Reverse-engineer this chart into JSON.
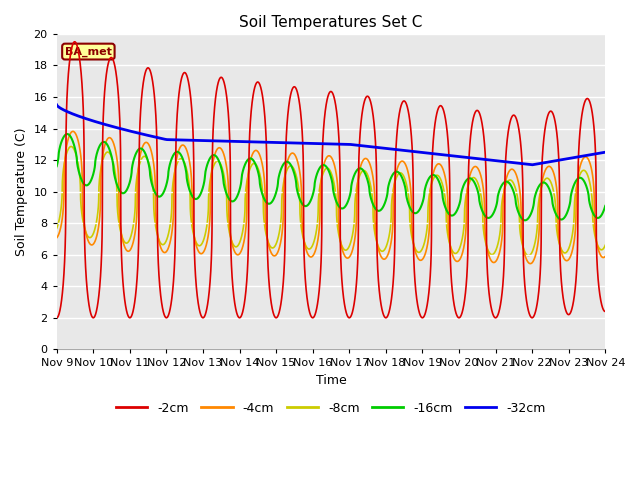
{
  "title": "Soil Temperatures Set C",
  "xlabel": "Time",
  "ylabel": "Soil Temperature (C)",
  "annotation": "BA_met",
  "ylim": [
    0,
    20
  ],
  "xlim": [
    0,
    15
  ],
  "x_tick_labels": [
    "Nov 9",
    "Nov 10",
    "Nov 11",
    "Nov 12",
    "Nov 13",
    "Nov 14",
    "Nov 15",
    "Nov 16",
    "Nov 17",
    "Nov 18",
    "Nov 19",
    "Nov 20",
    "Nov 21",
    "Nov 22",
    "Nov 23",
    "Nov 24"
  ],
  "series": {
    "-2cm": {
      "color": "#dd0000",
      "linewidth": 1.2
    },
    "-4cm": {
      "color": "#ff8800",
      "linewidth": 1.2
    },
    "-8cm": {
      "color": "#cccc00",
      "linewidth": 1.2
    },
    "-16cm": {
      "color": "#00cc00",
      "linewidth": 1.5
    },
    "-32cm": {
      "color": "#0000ee",
      "linewidth": 2.0
    }
  },
  "background_color": "#e8e8e8",
  "title_fontsize": 11,
  "axis_label_fontsize": 9,
  "tick_fontsize": 8,
  "legend_fontsize": 9
}
